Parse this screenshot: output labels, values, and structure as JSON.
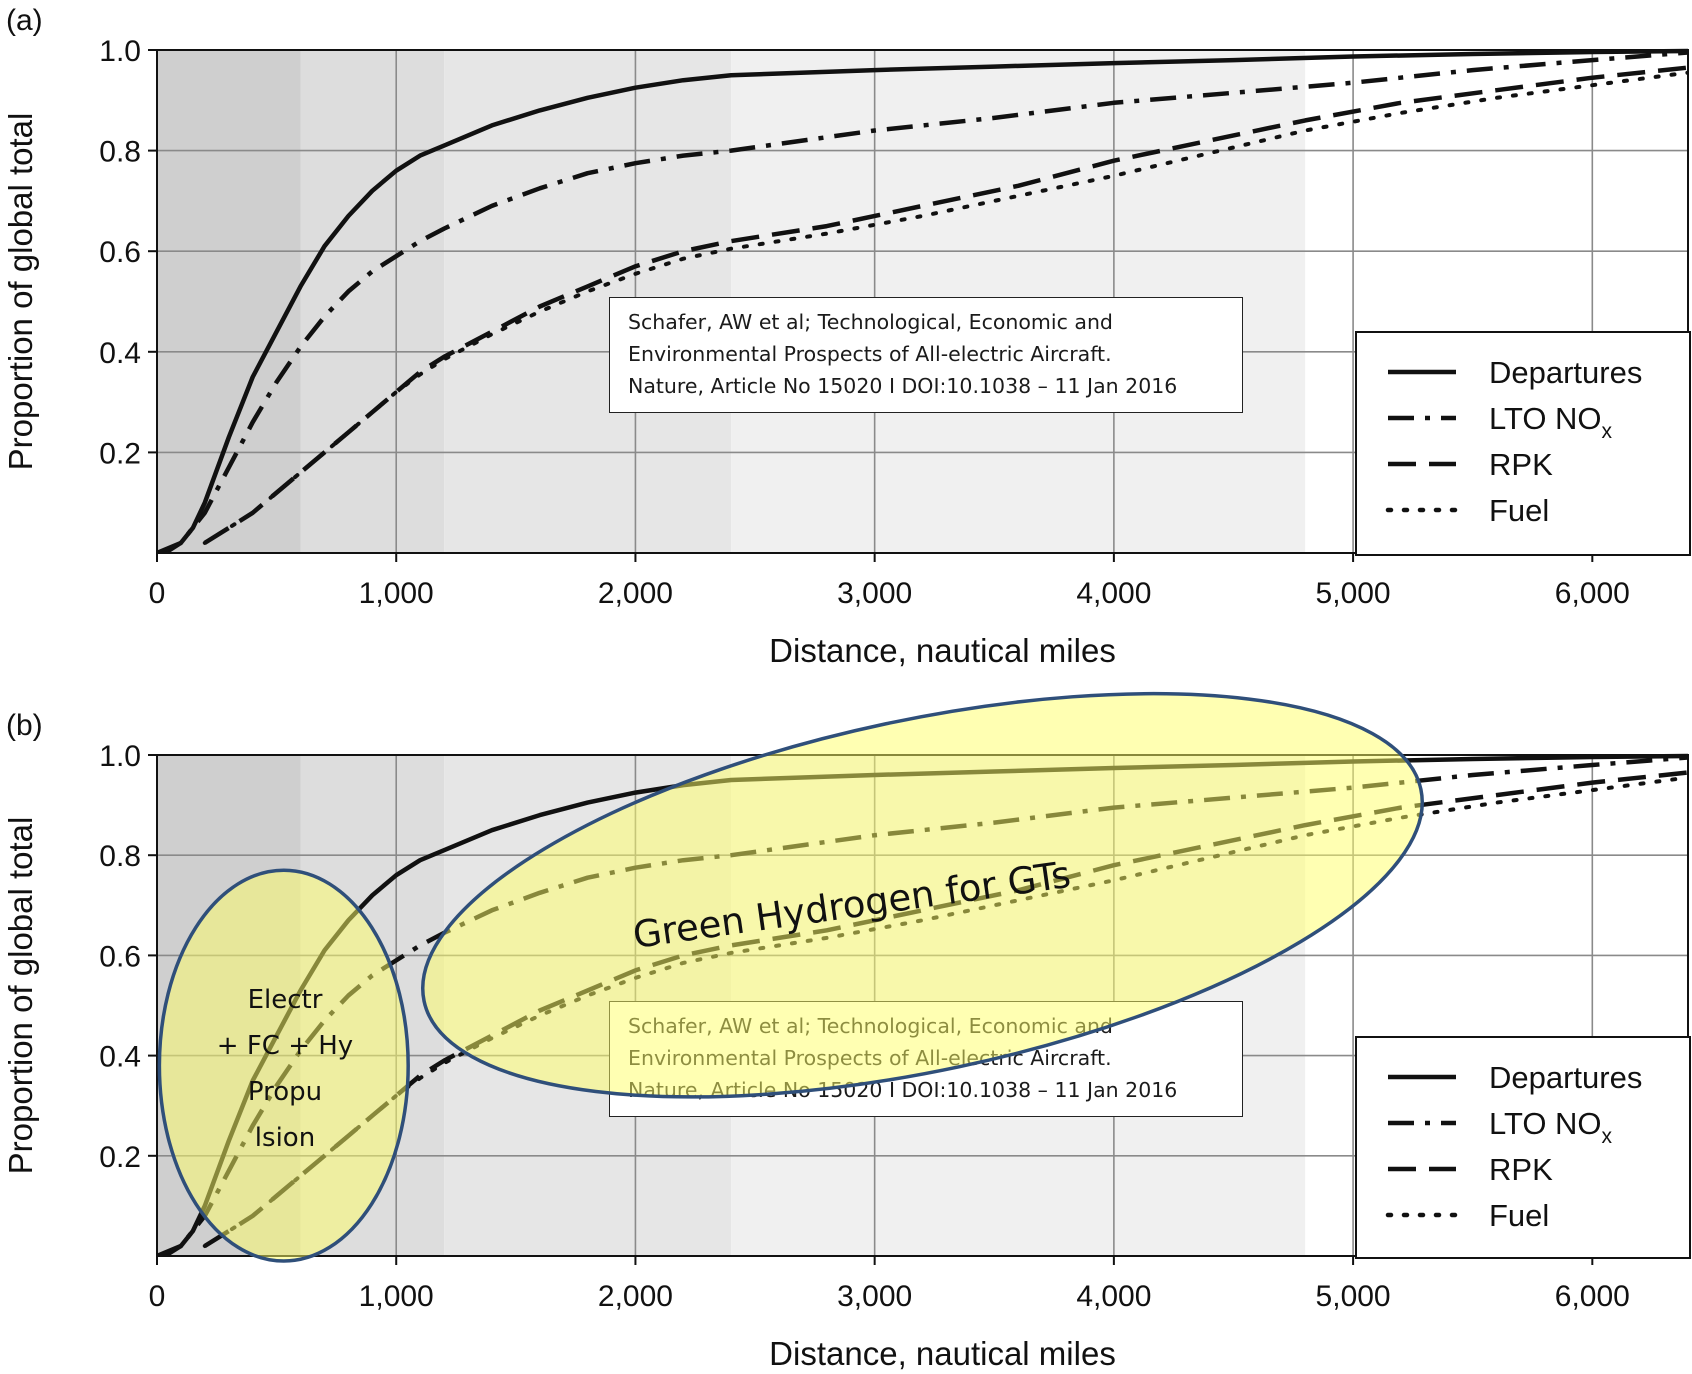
{
  "chart_data": [
    {
      "type": "line",
      "panel_label": "(a)",
      "xlabel": "Distance, nautical miles",
      "ylabel": "Proportion of global total",
      "xlim": [
        0,
        6400
      ],
      "ylim": [
        0,
        1.0
      ],
      "xticks": [
        0,
        1000,
        2000,
        3000,
        4000,
        5000,
        6000
      ],
      "xtick_labels": [
        "0",
        "1,000",
        "2,000",
        "3,000",
        "4,000",
        "5,000",
        "6,000"
      ],
      "yticks": [
        0.2,
        0.4,
        0.6,
        0.8,
        1.0
      ],
      "ytick_labels": [
        "0.2",
        "0.4",
        "0.6",
        "0.8",
        "1.0"
      ],
      "grid": true,
      "background_bands": [
        {
          "from": 0,
          "to": 600,
          "color": "#cfcfcf"
        },
        {
          "from": 600,
          "to": 1200,
          "color": "#dddddd"
        },
        {
          "from": 1200,
          "to": 2400,
          "color": "#e6e6e6"
        },
        {
          "from": 2400,
          "to": 4800,
          "color": "#f0f0f0"
        },
        {
          "from": 4800,
          "to": 6400,
          "color": "#ffffff"
        }
      ],
      "legend_position": "bottom-right",
      "legend": [
        {
          "label": "Departures",
          "sub": "",
          "style": "solid"
        },
        {
          "label": "LTO NO",
          "sub": "x",
          "style": "dashdot"
        },
        {
          "label": "RPK",
          "sub": "",
          "style": "dashed"
        },
        {
          "label": "Fuel",
          "sub": "",
          "style": "dotted"
        }
      ],
      "citation": [
        "Schafer, AW et al; Technological, Economic and",
        "Environmental Prospects of All-electric Aircraft.",
        "Nature, Article No 15020 I DOI:10.1038 – 11 Jan 2016"
      ],
      "series": [
        {
          "name": "Departures",
          "style": "solid",
          "x": [
            0,
            50,
            100,
            150,
            200,
            300,
            400,
            500,
            600,
            700,
            800,
            900,
            1000,
            1100,
            1200,
            1400,
            1600,
            1800,
            2000,
            2200,
            2400,
            3000,
            3500,
            4000,
            4500,
            5000,
            5500,
            6000,
            6400
          ],
          "y": [
            0,
            0.005,
            0.02,
            0.05,
            0.1,
            0.23,
            0.35,
            0.44,
            0.53,
            0.61,
            0.67,
            0.72,
            0.76,
            0.79,
            0.81,
            0.85,
            0.88,
            0.905,
            0.925,
            0.94,
            0.95,
            0.96,
            0.967,
            0.974,
            0.98,
            0.987,
            0.992,
            0.996,
            0.998
          ]
        },
        {
          "name": "LTO NOx",
          "style": "dashdot",
          "x": [
            0,
            100,
            200,
            300,
            400,
            500,
            600,
            700,
            800,
            900,
            1000,
            1100,
            1200,
            1400,
            1600,
            1800,
            2000,
            2200,
            2400,
            3000,
            3500,
            4000,
            4500,
            5000,
            5500,
            6000,
            6400
          ],
          "y": [
            0,
            0.02,
            0.08,
            0.17,
            0.26,
            0.34,
            0.41,
            0.47,
            0.52,
            0.56,
            0.59,
            0.62,
            0.645,
            0.69,
            0.725,
            0.755,
            0.775,
            0.79,
            0.8,
            0.84,
            0.865,
            0.895,
            0.915,
            0.935,
            0.96,
            0.98,
            0.995
          ]
        },
        {
          "name": "RPK",
          "style": "dashed",
          "x": [
            200,
            300,
            400,
            500,
            600,
            700,
            800,
            900,
            1000,
            1100,
            1200,
            1400,
            1600,
            1800,
            2000,
            2200,
            2400,
            2800,
            3200,
            3600,
            4000,
            4400,
            4800,
            5200,
            5600,
            6000,
            6400
          ],
          "y": [
            0.02,
            0.05,
            0.08,
            0.12,
            0.16,
            0.2,
            0.24,
            0.28,
            0.32,
            0.36,
            0.39,
            0.44,
            0.49,
            0.53,
            0.57,
            0.6,
            0.62,
            0.65,
            0.69,
            0.73,
            0.78,
            0.82,
            0.86,
            0.895,
            0.92,
            0.945,
            0.965
          ]
        },
        {
          "name": "Fuel",
          "style": "dotted",
          "x": [
            200,
            300,
            400,
            500,
            600,
            700,
            800,
            900,
            1000,
            1100,
            1200,
            1400,
            1600,
            1800,
            2000,
            2200,
            2400,
            2800,
            3200,
            3600,
            4000,
            4400,
            4800,
            5200,
            5600,
            6000,
            6400
          ],
          "y": [
            0.02,
            0.05,
            0.08,
            0.12,
            0.16,
            0.2,
            0.24,
            0.28,
            0.32,
            0.355,
            0.385,
            0.435,
            0.48,
            0.52,
            0.555,
            0.585,
            0.605,
            0.635,
            0.67,
            0.71,
            0.75,
            0.795,
            0.84,
            0.875,
            0.905,
            0.93,
            0.955
          ]
        }
      ]
    },
    {
      "type": "line",
      "panel_label": "(b)",
      "xlabel": "Distance, nautical miles",
      "ylabel": "Proportion of global total",
      "xlim": [
        0,
        6400
      ],
      "ylim": [
        0,
        1.0
      ],
      "xticks": [
        0,
        1000,
        2000,
        3000,
        4000,
        5000,
        6000
      ],
      "xtick_labels": [
        "0",
        "1,000",
        "2,000",
        "3,000",
        "4,000",
        "5,000",
        "6,000"
      ],
      "yticks": [
        0.2,
        0.4,
        0.6,
        0.8,
        1.0
      ],
      "ytick_labels": [
        "0.2",
        "0.4",
        "0.6",
        "0.8",
        "1.0"
      ],
      "grid": true,
      "legend_position": "bottom-right",
      "legend": [
        {
          "label": "Departures",
          "sub": "",
          "style": "solid"
        },
        {
          "label": "LTO NO",
          "sub": "x",
          "style": "dashdot"
        },
        {
          "label": "RPK",
          "sub": "",
          "style": "dashed"
        },
        {
          "label": "Fuel",
          "sub": "",
          "style": "dotted"
        }
      ],
      "citation": [
        "Schafer, AW et al; Technological, Economic and",
        "Environmental Prospects of All-electric Aircraft.",
        "Nature, Article No 15020 I DOI:10.1038 – 11 Jan 2016"
      ],
      "annotations": [
        {
          "name": "green-hydrogen",
          "lines": [
            "Green Hydrogen for GTs"
          ],
          "fill": "#ffff66",
          "stroke": "#2f4f7a",
          "center": [
            3200,
            0.72
          ],
          "rx_data": 2130,
          "ry_data": 0.35,
          "rotation_deg": -12
        },
        {
          "name": "electric-fc",
          "lines": [
            "Electr",
            "+ FC + Hy",
            "Propu",
            "lsion"
          ],
          "fill": "#ffff66",
          "stroke": "#2f4f7a",
          "center": [
            530,
            0.38
          ],
          "rx_data": 520,
          "ry_data": 0.39,
          "rotation_deg": 0
        }
      ]
    }
  ]
}
